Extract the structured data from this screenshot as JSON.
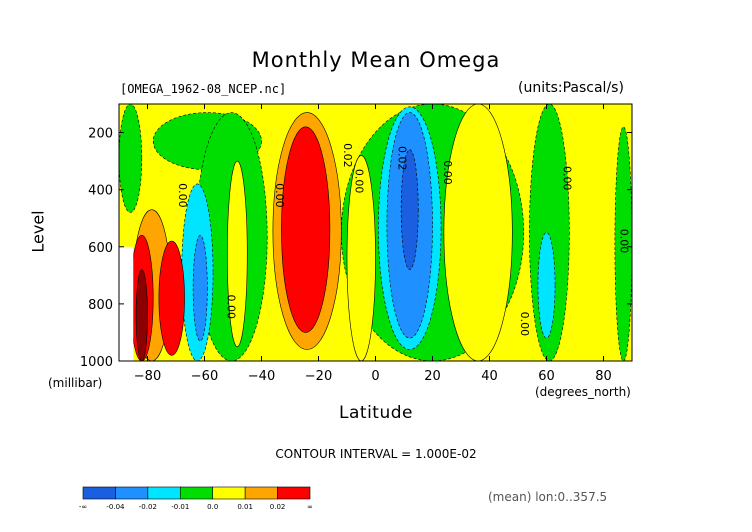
{
  "header": {
    "title": "Monthly Mean Omega",
    "dataset": "[OMEGA_1962-08_NCEP.nc]",
    "units": "(units:Pascal/s)"
  },
  "footer": {
    "contour_interval": "CONTOUR INTERVAL = 1.000E-02",
    "averaging": "(mean) lon:0..357.5"
  },
  "chart_data": {
    "type": "heatmap",
    "title": "Monthly Mean Omega",
    "xlabel": "Latitude",
    "x_unit": "(degrees_north)",
    "ylabel": "Level",
    "y_unit": "(millibar)",
    "xlim": [
      -90,
      90
    ],
    "ylim": [
      1000,
      100
    ],
    "y_reversed": true,
    "x_ticks": [
      -80,
      -60,
      -40,
      -20,
      0,
      20,
      40,
      60,
      80
    ],
    "y_ticks": [
      200,
      400,
      600,
      800,
      1000
    ],
    "contour_interval": 0.01,
    "colorbar": {
      "bins": [
        {
          "range": [
            "-∞",
            -0.04
          ],
          "color": "#1a5fe0"
        },
        {
          "range": [
            -0.04,
            -0.02
          ],
          "color": "#1e90ff"
        },
        {
          "range": [
            -0.02,
            -0.01
          ],
          "color": "#00e5ff"
        },
        {
          "range": [
            -0.01,
            0.0
          ],
          "color": "#00dd00"
        },
        {
          "range": [
            0.0,
            0.01
          ],
          "color": "#ffff00"
        },
        {
          "range": [
            0.01,
            0.02
          ],
          "color": "#ffa500"
        },
        {
          "range": [
            0.02,
            "∞"
          ],
          "color": "#ff0000"
        }
      ],
      "labels": [
        "-∞",
        "-0.04",
        "-0.02",
        "-0.01",
        "0.0",
        "0.01",
        "0.02",
        "∞"
      ]
    },
    "contour_labels": [
      {
        "text": "0.00",
        "lat": -69,
        "level": 420
      },
      {
        "text": "0.00",
        "lat": -52,
        "level": 810
      },
      {
        "text": "0.00",
        "lat": -35,
        "level": 420
      },
      {
        "text": "0.02",
        "lat": -11,
        "level": 280
      },
      {
        "text": "0.00",
        "lat": -7,
        "level": 370
      },
      {
        "text": "0.02",
        "lat": 8,
        "level": 290
      },
      {
        "text": "0.00",
        "lat": 24,
        "level": 340
      },
      {
        "text": "0.00",
        "lat": 51,
        "level": 870
      },
      {
        "text": "0.00",
        "lat": 66,
        "level": 360
      },
      {
        "text": "0.00",
        "lat": 86,
        "level": 580
      }
    ],
    "regions": [
      {
        "value": 0.005,
        "color": "#ffff00",
        "lat": [
          -90,
          90
        ],
        "level": [
          100,
          1000
        ]
      },
      {
        "value": -0.005,
        "color": "#00dd00",
        "lat": [
          -90,
          -82
        ],
        "level": [
          100,
          480
        ]
      },
      {
        "value": -0.005,
        "color": "#00dd00",
        "lat": [
          -78,
          -40
        ],
        "level": [
          130,
          330
        ]
      },
      {
        "value": -0.005,
        "color": "#00dd00",
        "lat": [
          -63,
          -38
        ],
        "level": [
          130,
          1000
        ]
      },
      {
        "value": 0.005,
        "color": "#ffff00",
        "lat": [
          -52,
          -45
        ],
        "level": [
          300,
          950
        ]
      },
      {
        "value": -0.015,
        "color": "#00e5ff",
        "lat": [
          -68,
          -57
        ],
        "level": [
          380,
          1000
        ]
      },
      {
        "value": -0.025,
        "color": "#1e90ff",
        "lat": [
          -64,
          -59
        ],
        "level": [
          560,
          930
        ]
      },
      {
        "value": -0.005,
        "color": "#00dd00",
        "lat": [
          -12,
          52
        ],
        "level": [
          100,
          1000
        ]
      },
      {
        "value": 0.005,
        "color": "#ffff00",
        "lat": [
          -10,
          0
        ],
        "level": [
          280,
          1000
        ]
      },
      {
        "value": 0.005,
        "color": "#ffff00",
        "lat": [
          24,
          48
        ],
        "level": [
          100,
          1000
        ]
      },
      {
        "value": -0.005,
        "color": "#00dd00",
        "lat": [
          54,
          68
        ],
        "level": [
          100,
          1000
        ]
      },
      {
        "value": -0.015,
        "color": "#00e5ff",
        "lat": [
          57,
          63
        ],
        "level": [
          550,
          920
        ]
      },
      {
        "value": -0.005,
        "color": "#00dd00",
        "lat": [
          84,
          90
        ],
        "level": [
          180,
          1000
        ]
      },
      {
        "value": 0.015,
        "color": "#ffa500",
        "lat": [
          -36,
          -12
        ],
        "level": [
          130,
          960
        ]
      },
      {
        "value": 0.025,
        "color": "#ff0000",
        "lat": [
          -33,
          -16
        ],
        "level": [
          180,
          900
        ]
      },
      {
        "value": -0.015,
        "color": "#00e5ff",
        "lat": [
          1,
          23
        ],
        "level": [
          110,
          960
        ]
      },
      {
        "value": -0.025,
        "color": "#1e90ff",
        "lat": [
          4,
          20
        ],
        "level": [
          130,
          920
        ]
      },
      {
        "value": -0.035,
        "color": "#1a5fe0",
        "lat": [
          9,
          15
        ],
        "level": [
          260,
          680
        ]
      },
      {
        "value": 0.015,
        "color": "#ffa500",
        "lat": [
          -85,
          -72
        ],
        "level": [
          470,
          1000
        ]
      },
      {
        "value": 0.025,
        "color": "#ff0000",
        "lat": [
          -86,
          -78
        ],
        "level": [
          560,
          1000
        ]
      },
      {
        "value": 0.025,
        "color": "#ff0000",
        "lat": [
          -76,
          -67
        ],
        "level": [
          580,
          980
        ]
      },
      {
        "value": 0.035,
        "color": "#8b0000",
        "lat": [
          -84,
          -80
        ],
        "level": [
          680,
          1000
        ]
      }
    ],
    "missing_data": {
      "lat": [
        -90,
        -85
      ],
      "level": [
        600,
        1000
      ]
    }
  }
}
